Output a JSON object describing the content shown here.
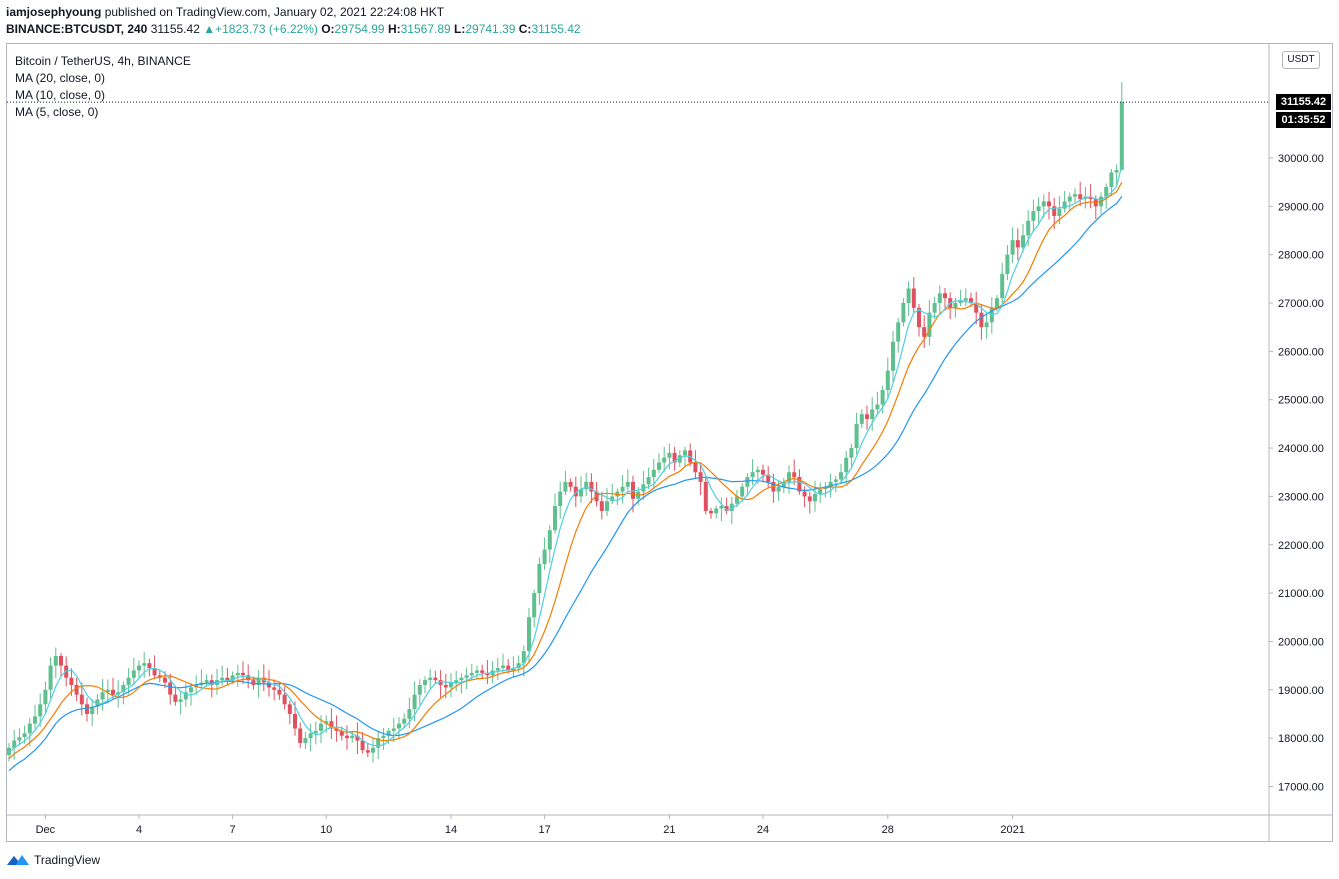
{
  "header": {
    "author": "iamjosephyoung",
    "published": "published on TradingView.com, January 02, 2021 22:24:08 HKT",
    "symbol": "BINANCE:BTCUSDT, 240",
    "last": "31155.42",
    "change": "+1823.73 (+6.22%)",
    "o_label": "O:",
    "o_value": "29754.99",
    "h_label": "H:",
    "h_value": "31567.89",
    "l_label": "L:",
    "l_value": "29741.39",
    "c_label": "C:",
    "c_value": "31155.42",
    "up_arrow": "▲"
  },
  "legend": {
    "title": "Bitcoin / TetherUS, 4h, BINANCE",
    "ma20": "MA (20, close, 0)",
    "ma10": "MA (10, close, 0)",
    "ma5": "MA (5, close, 0)"
  },
  "price_axis": {
    "unit": "USDT",
    "last_price_label": "31155.42",
    "countdown": "01:35:52"
  },
  "footer": {
    "brand": "TradingView",
    "logo_icon": "tradingview-logo-icon"
  },
  "colors": {
    "up": "#26a69a",
    "down": "#ef5350",
    "ma5": "#4dd0e1",
    "ma10": "#f57c00",
    "ma20": "#2196f3",
    "candle_up": "#5fbf8f",
    "candle_down": "#e0505f"
  },
  "chart_data": {
    "type": "candlestick",
    "interval": "4h",
    "y_ticks": [
      "17000.00",
      "18000.00",
      "19000.00",
      "20000.00",
      "21000.00",
      "22000.00",
      "23000.00",
      "24000.00",
      "25000.00",
      "26000.00",
      "27000.00",
      "28000.00",
      "29000.00",
      "30000.00"
    ],
    "ylim": [
      16400,
      31800
    ],
    "x_ticks": [
      "Dec",
      "4",
      "7",
      "10",
      "14",
      "17",
      "21",
      "24",
      "28",
      "2021"
    ],
    "x_tick_index": [
      7,
      25,
      43,
      61,
      85,
      103,
      127,
      145,
      169,
      193
    ],
    "last_close": 31155.42,
    "closes": [
      17800,
      17950,
      18020,
      18100,
      18300,
      18450,
      18700,
      19000,
      19500,
      19700,
      19500,
      19250,
      19100,
      18900,
      18700,
      18500,
      18650,
      18800,
      18950,
      19000,
      18900,
      18950,
      19100,
      19250,
      19400,
      19500,
      19550,
      19450,
      19300,
      19250,
      19150,
      18900,
      18750,
      18800,
      18950,
      19050,
      19100,
      19150,
      19200,
      19100,
      19200,
      19250,
      19200,
      19300,
      19350,
      19300,
      19200,
      19100,
      19250,
      19150,
      19050,
      19000,
      18900,
      18700,
      18500,
      18200,
      17900,
      18000,
      18100,
      18150,
      18300,
      18350,
      18200,
      18150,
      18050,
      18000,
      18050,
      17950,
      17750,
      17700,
      17800,
      18000,
      18050,
      18150,
      18200,
      18300,
      18400,
      18600,
      18900,
      19100,
      19200,
      19250,
      19200,
      19100,
      19050,
      19150,
      19200,
      19250,
      19300,
      19350,
      19400,
      19350,
      19300,
      19400,
      19450,
      19500,
      19400,
      19450,
      19550,
      19800,
      20500,
      21000,
      21600,
      21900,
      22300,
      22800,
      23100,
      23300,
      23200,
      23000,
      23150,
      23300,
      23100,
      22900,
      22700,
      22900,
      23000,
      23100,
      23200,
      23300,
      22950,
      23100,
      23250,
      23400,
      23550,
      23700,
      23800,
      23900,
      23700,
      23850,
      23950,
      23700,
      23500,
      23300,
      22700,
      22650,
      22750,
      22800,
      22700,
      22850,
      23000,
      23200,
      23400,
      23500,
      23550,
      23450,
      23300,
      23100,
      23200,
      23300,
      23500,
      23400,
      23100,
      23000,
      22900,
      23050,
      23150,
      23200,
      23300,
      23350,
      23500,
      23800,
      24000,
      24500,
      24700,
      24600,
      24800,
      24900,
      25200,
      25600,
      26200,
      26600,
      27000,
      27300,
      26900,
      26500,
      26300,
      26800,
      27000,
      27200,
      27100,
      26900,
      27000,
      27050,
      27100,
      27000,
      26800,
      26500,
      26600,
      26900,
      27100,
      27600,
      28000,
      28300,
      28150,
      28400,
      28700,
      28900,
      29000,
      29100,
      29000,
      28800,
      28950,
      29100,
      29200,
      29250,
      29150,
      29200,
      29150,
      29000,
      29200,
      29400,
      29700,
      29750,
      31155
    ],
    "series": [
      {
        "name": "MA (5, close, 0)"
      },
      {
        "name": "MA (10, close, 0)"
      },
      {
        "name": "MA (20, close, 0)"
      }
    ]
  }
}
